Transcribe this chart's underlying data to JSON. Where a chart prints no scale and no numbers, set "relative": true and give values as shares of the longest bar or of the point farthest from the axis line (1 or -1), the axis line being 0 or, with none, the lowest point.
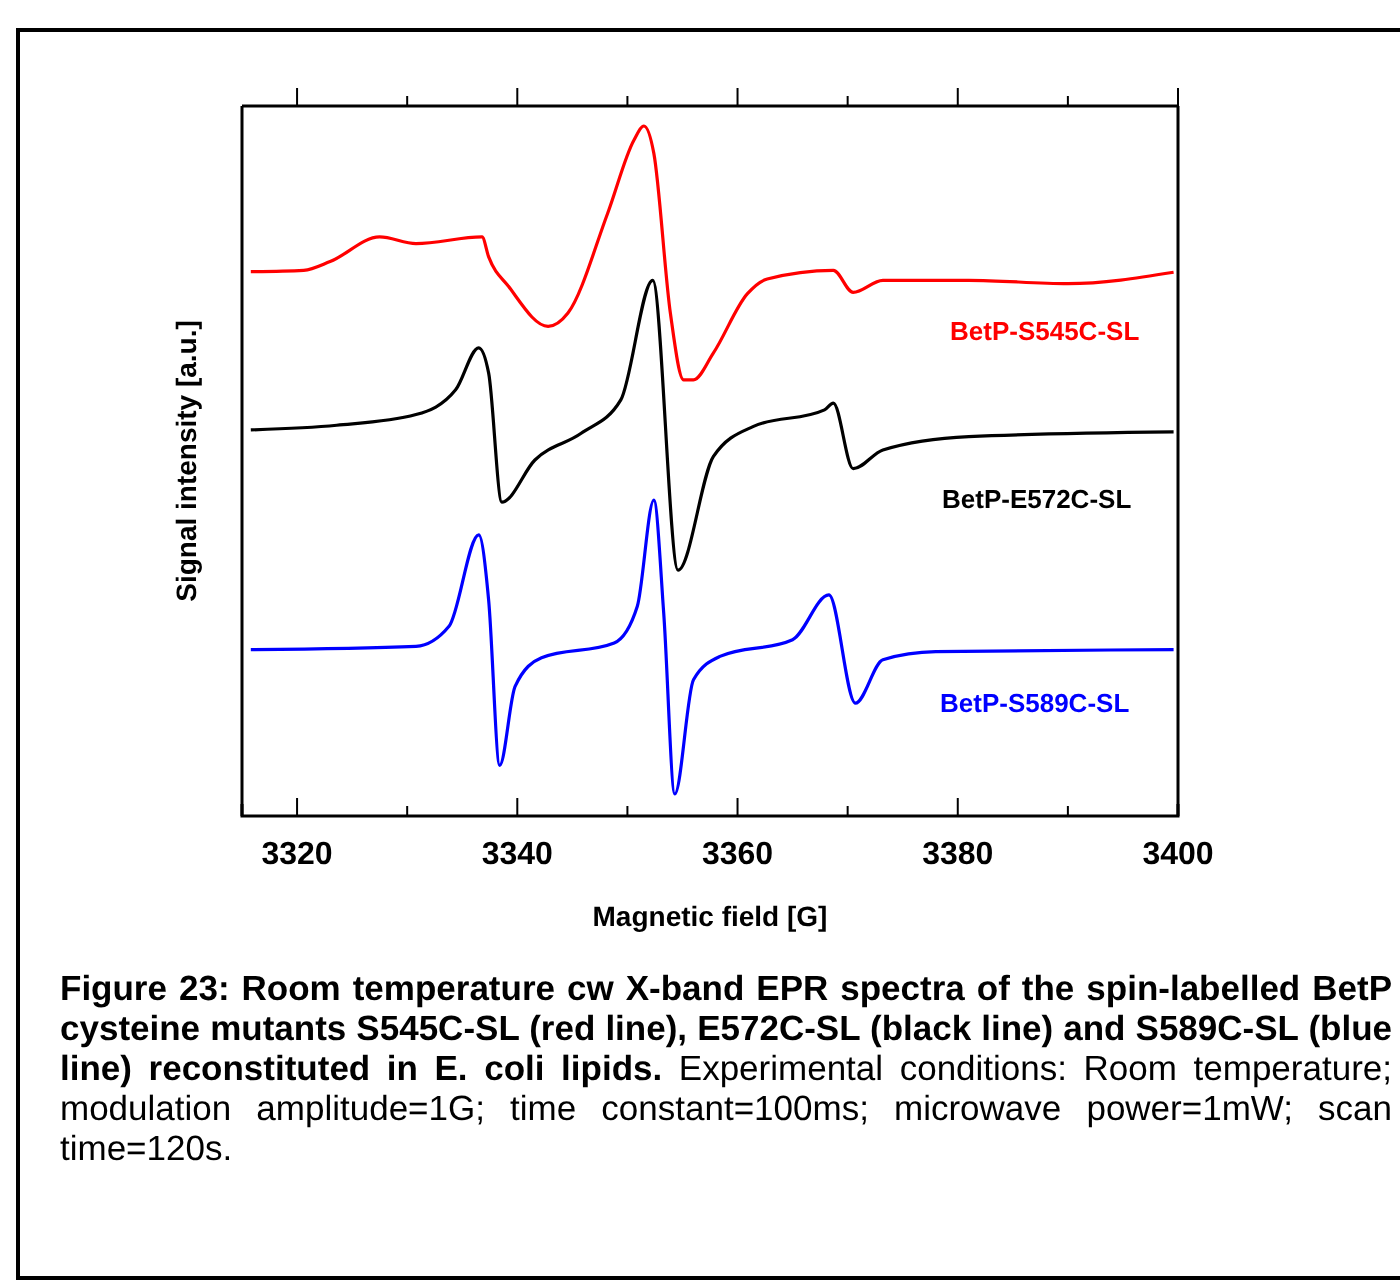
{
  "chart_data": {
    "type": "line",
    "relative": true,
    "xlabel": "Magnetic field [G]",
    "ylabel": "Signal intensity [a.u.]",
    "xlim": [
      3315,
      3400
    ],
    "xticks": [
      3320,
      {
        "value": 3330,
        "label": null
      },
      3340,
      {
        "value": 3350,
        "label": null
      },
      3360,
      {
        "value": 3370,
        "label": null
      },
      3380,
      {
        "value": 3390,
        "label": null
      },
      3400
    ],
    "tick_labels": "x",
    "grid": false,
    "marker": "none",
    "line_style": "solid",
    "series": [
      {
        "name": "BetP-S545C-SL",
        "color": "#ff0000",
        "x": [
          3315.8,
          3320.6,
          3323.0,
          3327.5,
          3330.8,
          3336.8,
          3337.4,
          3339.2,
          3342.8,
          3344.6,
          3348.2,
          3350.6,
          3351.5,
          3352.4,
          3353.9,
          3355.1,
          3356.0,
          3357.8,
          3360.9,
          3362.7,
          3368.7,
          3370.5,
          3373.2,
          3381.0,
          3390.0,
          3399.6
        ],
        "values": [
          0.782,
          0.784,
          0.797,
          0.834,
          0.824,
          0.834,
          0.804,
          0.76,
          0.7,
          0.72,
          0.869,
          0.979,
          1.0,
          0.959,
          0.72,
          0.62,
          0.62,
          0.66,
          0.749,
          0.771,
          0.784,
          0.751,
          0.769,
          0.769,
          0.764,
          0.781
        ]
      },
      {
        "name": "BetP-E572C-SL",
        "color": "#000000",
        "x": [
          3315.8,
          3323.6,
          3330.8,
          3334.4,
          3336.5,
          3337.4,
          3338.6,
          3341.6,
          3345.8,
          3349.4,
          3352.3,
          3354.6,
          3357.8,
          3361.4,
          3367.9,
          3368.7,
          3370.5,
          3373.2,
          3381.0,
          3399.6
        ],
        "values": [
          0.545,
          0.552,
          0.568,
          0.605,
          0.668,
          0.63,
          0.437,
          0.5,
          0.54,
          0.59,
          0.769,
          0.335,
          0.505,
          0.55,
          0.575,
          0.585,
          0.487,
          0.515,
          0.535,
          0.542
        ]
      },
      {
        "name": "BetP-S589C-SL",
        "color": "#0000ff",
        "x": [
          3315.8,
          3330.8,
          3333.8,
          3336.5,
          3337.4,
          3338.4,
          3339.8,
          3342.2,
          3348.8,
          3350.9,
          3352.4,
          3353.3,
          3354.3,
          3356.0,
          3358.4,
          3365.0,
          3368.3,
          3370.7,
          3373.2,
          3378.0,
          3399.6
        ],
        "values": [
          0.216,
          0.221,
          0.251,
          0.388,
          0.29,
          0.043,
          0.161,
          0.204,
          0.226,
          0.281,
          0.44,
          0.27,
          0.0,
          0.171,
          0.206,
          0.231,
          0.298,
          0.136,
          0.201,
          0.213,
          0.216
        ]
      }
    ],
    "annotations": [
      "Figure 23: Room temperature cw X-band EPR spectra of the spin-labelled BetP cysteine mutants S545C-SL (red line), E572C-SL (black line) and S589C-SL (blue line) reconstituted in E. coli lipids.",
      "Experimental conditions: Room temperature; modulation amplitude=1G; time constant=100ms; microwave power=1mW; scan time=120s."
    ]
  }
}
